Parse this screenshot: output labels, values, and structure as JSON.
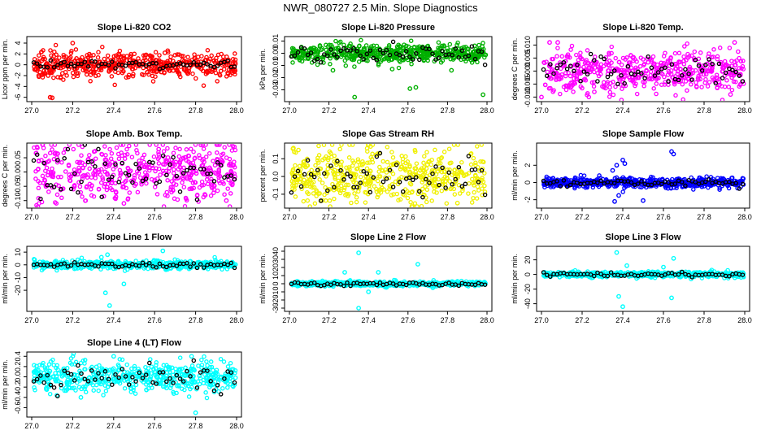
{
  "figure_title": "NWR_080727  2.5 Min. Slope Diagnostics",
  "chart_data": [
    {
      "type": "scatter",
      "title": "Slope Li-820 CO2",
      "ylabel": "Licor ppm per min.",
      "color": "#ff0000",
      "xlim": [
        27.0,
        28.0
      ],
      "ylim": [
        -6.2,
        4.6
      ],
      "yticks": [
        -6,
        -4,
        -2,
        0,
        2,
        4
      ],
      "ytick_labels": [
        "-6",
        "-4",
        "-2",
        "0",
        "2",
        "4"
      ],
      "xticks": [
        27.0,
        27.2,
        27.4,
        27.6,
        27.8,
        28.0
      ],
      "xtick_labels": [
        "27.0",
        "27.2",
        "27.4",
        "27.6",
        "27.8",
        "28.0"
      ],
      "spread": 1.1,
      "black_spread": 0.4,
      "outliers": [
        [
          27.09,
          -6.0
        ],
        [
          27.1,
          -6.1
        ],
        [
          27.2,
          4.0
        ],
        [
          27.08,
          -2.0
        ],
        [
          27.15,
          -1.6
        ],
        [
          27.3,
          -1.5
        ],
        [
          27.65,
          2.2
        ]
      ]
    },
    {
      "type": "scatter",
      "title": "Slope Li-820 Pressure",
      "ylabel": "kPa per min.",
      "color": "#00b000",
      "xlim": [
        27.0,
        28.0
      ],
      "ylim": [
        -0.037,
        0.011
      ],
      "yticks": [
        -0.03,
        -0.02,
        -0.01,
        0.0,
        0.01
      ],
      "ytick_labels": [
        "-0.03",
        "-0.02",
        "-0.01",
        "0.00",
        "0.01"
      ],
      "xticks": [
        27.0,
        27.2,
        27.4,
        27.6,
        27.8,
        28.0
      ],
      "xtick_labels": [
        "27.0",
        "27.2",
        "27.4",
        "27.6",
        "27.8",
        "28.0"
      ],
      "spread": 0.004,
      "black_spread": 0.003,
      "outliers": [
        [
          27.33,
          -0.036
        ],
        [
          27.61,
          -0.029
        ],
        [
          27.64,
          -0.028
        ],
        [
          27.98,
          -0.034
        ],
        [
          27.22,
          -0.014
        ],
        [
          27.52,
          -0.013
        ],
        [
          27.82,
          -0.014
        ]
      ]
    },
    {
      "type": "scatter",
      "title": "Slope Li-820 Temp.",
      "ylabel": "degrees C per min.",
      "color": "#ff00ff",
      "xlim": [
        27.0,
        28.0
      ],
      "ylim": [
        -0.0105,
        0.012
      ],
      "yticks": [
        -0.01,
        -0.005,
        0.0,
        0.005,
        0.01
      ],
      "ytick_labels": [
        "-0.010",
        "-0.005",
        "0.000",
        "0.005",
        "0.010"
      ],
      "xticks": [
        27.0,
        27.2,
        27.4,
        27.6,
        27.8,
        28.0
      ],
      "xtick_labels": [
        "27.0",
        "27.2",
        "27.4",
        "27.6",
        "27.8",
        "28.0"
      ],
      "spread": 0.004,
      "black_spread": 0.003,
      "outliers": [
        [
          27.04,
          0.011
        ],
        [
          27.08,
          0.011
        ],
        [
          27.95,
          0.011
        ],
        [
          27.0,
          -0.01
        ],
        [
          27.26,
          -0.008
        ],
        [
          27.93,
          -0.009
        ]
      ]
    },
    {
      "type": "scatter",
      "title": "Slope Amb. Box Temp.",
      "ylabel": "degrees C per min.",
      "color": "#ff00ff",
      "xlim": [
        27.0,
        28.0
      ],
      "ylim": [
        -0.115,
        0.09
      ],
      "yticks": [
        -0.1,
        -0.05,
        0.0,
        0.05
      ],
      "ytick_labels": [
        "-0.10",
        "-0.05",
        "0.00",
        "0.05"
      ],
      "xticks": [
        27.0,
        27.2,
        27.4,
        27.6,
        27.8,
        28.0
      ],
      "xtick_labels": [
        "27.0",
        "27.2",
        "27.4",
        "27.6",
        "27.8",
        "28.0"
      ],
      "spread": 0.05,
      "black_spread": 0.04,
      "outliers": [
        [
          27.45,
          -0.11
        ],
        [
          27.62,
          0.08
        ],
        [
          27.95,
          -0.1
        ]
      ]
    },
    {
      "type": "scatter",
      "title": "Slope Gas Stream RH",
      "ylabel": "percent per min.",
      "color": "#f0f000",
      "xlim": [
        27.0,
        28.0
      ],
      "ylim": [
        -0.16,
        0.17
      ],
      "yticks": [
        -0.1,
        0.0,
        0.1
      ],
      "ytick_labels": [
        "-0.1",
        "0.0",
        "0.1"
      ],
      "xticks": [
        27.0,
        27.2,
        27.4,
        27.6,
        27.8,
        28.0
      ],
      "xtick_labels": [
        "27.0",
        "27.2",
        "27.4",
        "27.6",
        "27.8",
        "28.0"
      ],
      "spread": 0.08,
      "black_spread": 0.06,
      "outliers": [
        [
          27.02,
          0.16
        ],
        [
          27.85,
          -0.15
        ]
      ]
    },
    {
      "type": "scatter",
      "title": "Slope Sample Flow",
      "ylabel": "ml/min per min.",
      "color": "#0000ff",
      "xlim": [
        27.0,
        28.0
      ],
      "ylim": [
        -2.6,
        4.2
      ],
      "yticks": [
        -2,
        0,
        2
      ],
      "ytick_labels": [
        "-2",
        "0",
        "2"
      ],
      "xticks": [
        27.0,
        27.2,
        27.4,
        27.6,
        27.8,
        28.0
      ],
      "xtick_labels": [
        "27.0",
        "27.2",
        "27.4",
        "27.6",
        "27.8",
        "28.0"
      ],
      "spread": 0.3,
      "black_spread": 0.2,
      "outliers": [
        [
          27.36,
          -2.2
        ],
        [
          27.37,
          2.0
        ],
        [
          27.4,
          2.6
        ],
        [
          27.41,
          2.2
        ],
        [
          27.5,
          -2.1
        ],
        [
          27.64,
          3.6
        ],
        [
          27.65,
          3.3
        ],
        [
          27.35,
          1.4
        ],
        [
          27.38,
          -1.5
        ]
      ]
    },
    {
      "type": "scatter",
      "title": "Slope Line 1 Flow",
      "ylabel": "ml/min per min.",
      "color": "#00ffff",
      "xlim": [
        27.0,
        28.0
      ],
      "ylim": [
        -34,
        12
      ],
      "yticks": [
        -20,
        -10,
        0,
        10
      ],
      "ytick_labels": [
        "-20",
        "-10",
        "0",
        "10"
      ],
      "xticks": [
        27.0,
        27.2,
        27.4,
        27.6,
        27.8,
        28.0
      ],
      "xtick_labels": [
        "27.0",
        "27.2",
        "27.4",
        "27.6",
        "27.8",
        "28.0"
      ],
      "spread": 1.5,
      "black_spread": 1.0,
      "outliers": [
        [
          27.38,
          -32
        ],
        [
          27.36,
          -22
        ],
        [
          27.64,
          11
        ],
        [
          27.37,
          8
        ],
        [
          27.34,
          6
        ],
        [
          27.45,
          -15
        ]
      ]
    },
    {
      "type": "scatter",
      "title": "Slope Line 2 Flow",
      "ylabel": "ml/min per min.",
      "color": "#00ffff",
      "xlim": [
        27.0,
        28.0
      ],
      "ylim": [
        -30,
        42
      ],
      "yticks": [
        -30,
        -20,
        -10,
        0,
        10,
        20,
        30,
        40
      ],
      "ytick_labels": [
        "-30",
        "-20",
        "-10",
        "0",
        "10",
        "20",
        "30",
        "40"
      ],
      "xticks": [
        27.0,
        27.2,
        27.4,
        27.6,
        27.8,
        28.0
      ],
      "xtick_labels": [
        "27.0",
        "27.2",
        "27.4",
        "27.6",
        "27.8",
        "28.0"
      ],
      "spread": 1.5,
      "black_spread": 1.2,
      "outliers": [
        [
          27.35,
          38
        ],
        [
          27.28,
          14
        ],
        [
          27.45,
          14
        ],
        [
          27.65,
          24
        ],
        [
          27.35,
          -30
        ],
        [
          27.4,
          -10
        ]
      ]
    },
    {
      "type": "scatter",
      "title": "Slope Line 3 Flow",
      "ylabel": "ml/min per min.",
      "color": "#00ffff",
      "xlim": [
        27.0,
        28.0
      ],
      "ylim": [
        -46,
        34
      ],
      "yticks": [
        -40,
        -20,
        0,
        20
      ],
      "ytick_labels": [
        "-40",
        "-20",
        "0",
        "20"
      ],
      "xticks": [
        27.0,
        27.2,
        27.4,
        27.6,
        27.8,
        28.0
      ],
      "xtick_labels": [
        "27.0",
        "27.2",
        "27.4",
        "27.6",
        "27.8",
        "28.0"
      ],
      "spread": 2,
      "black_spread": 1.5,
      "outliers": [
        [
          27.37,
          30
        ],
        [
          27.4,
          -44
        ],
        [
          27.38,
          -30
        ],
        [
          27.65,
          22
        ],
        [
          27.64,
          -32
        ],
        [
          27.42,
          12
        ],
        [
          27.6,
          10
        ]
      ]
    },
    {
      "type": "scatter",
      "title": "Slope Line 4 (LT) Flow",
      "ylabel": "ml/min per min.",
      "color": "#00ffff",
      "xlim": [
        27.0,
        28.0
      ],
      "ylim": [
        -0.72,
        0.42
      ],
      "yticks": [
        -0.6,
        -0.4,
        -0.2,
        0.0,
        0.2,
        0.4
      ],
      "ytick_labels": [
        "-0.6",
        "-0.4",
        "-0.2",
        "0.0",
        "0.2",
        "0.4"
      ],
      "xticks": [
        27.0,
        27.2,
        27.4,
        27.6,
        27.8,
        28.0
      ],
      "xtick_labels": [
        "27.0",
        "27.2",
        "27.4",
        "27.6",
        "27.8",
        "28.0"
      ],
      "spread": 0.15,
      "black_spread": 0.12,
      "outliers": [
        [
          27.8,
          -0.7
        ],
        [
          27.4,
          0.4
        ],
        [
          27.78,
          0.4
        ],
        [
          27.24,
          -0.4
        ]
      ]
    }
  ]
}
